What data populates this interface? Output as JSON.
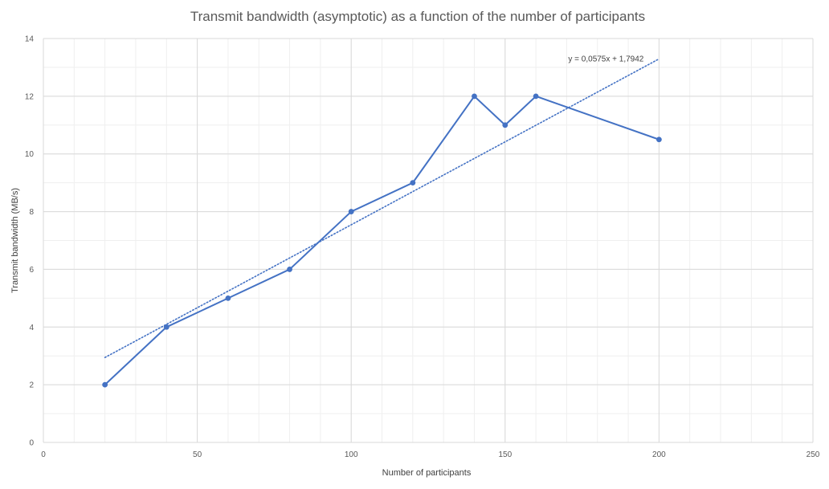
{
  "chart_data": {
    "type": "scatter",
    "title": "Transmit bandwidth (asymptotic) as a function of the number of participants",
    "xlabel": "Number of participants",
    "ylabel": "Transmit bandwidth (MB/s)",
    "xlim": [
      0,
      250
    ],
    "ylim": [
      0,
      14
    ],
    "x_ticks": [
      0,
      50,
      100,
      150,
      200,
      250
    ],
    "y_ticks": [
      0,
      2,
      4,
      6,
      8,
      10,
      12,
      14
    ],
    "x_minor_step": 10,
    "y_minor_step": 1,
    "grid": true,
    "lines_connected": true,
    "series": [
      {
        "x": [
          20,
          40,
          60,
          80,
          100,
          120,
          140,
          150,
          160,
          200
        ],
        "y": [
          2,
          4,
          5,
          6,
          8,
          9,
          12,
          11,
          12,
          10.5
        ],
        "color": "#4472c4"
      }
    ],
    "trendline": {
      "type": "linear",
      "slope": 0.0575,
      "intercept": 1.7942,
      "x_range": [
        20,
        200
      ],
      "style": "dotted",
      "color": "#4472c4",
      "equation_label": "y = 0,0575x + 1,7942"
    }
  }
}
